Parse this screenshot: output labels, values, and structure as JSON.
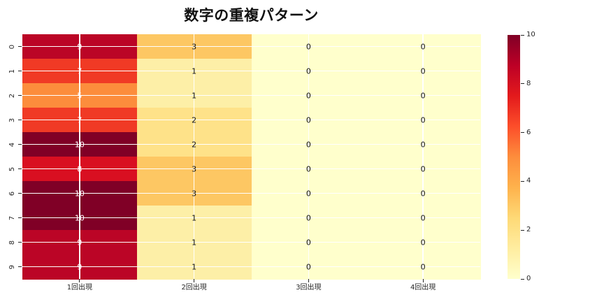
{
  "title": "数字の重複パターン",
  "colors": {
    "background": "#ffffff",
    "grid": "#ffffff",
    "tick": "#262626",
    "annotation_light": "#ffffff",
    "annotation_dark": "#111111",
    "title_text": "#111111"
  },
  "chart_data": {
    "type": "heatmap",
    "title": "数字の重複パターン",
    "row_labels": [
      "0",
      "1",
      "2",
      "3",
      "4",
      "5",
      "6",
      "7",
      "8",
      "9"
    ],
    "column_labels": [
      "1回出現",
      "2回出現",
      "3回出現",
      "4回出現"
    ],
    "values": [
      [
        9,
        3,
        0,
        0
      ],
      [
        7,
        1,
        0,
        0
      ],
      [
        5,
        1,
        0,
        0
      ],
      [
        7,
        2,
        0,
        0
      ],
      [
        10,
        2,
        0,
        0
      ],
      [
        8,
        3,
        0,
        0
      ],
      [
        10,
        3,
        0,
        0
      ],
      [
        10,
        1,
        0,
        0
      ],
      [
        9,
        1,
        0,
        0
      ],
      [
        9,
        1,
        0,
        0
      ]
    ],
    "vmin": 0,
    "vmax": 10,
    "colormap_name": "YlOrRd",
    "annotation_light_threshold": 5,
    "grid": true,
    "legend_position": "right-colorbar",
    "colorbar_ticks": [
      10,
      8,
      6,
      4,
      2,
      0
    ],
    "value_palette": {
      "0": "#ffffcc",
      "1": "#fdefa7",
      "2": "#fee289",
      "3": "#fdc763",
      "5": "#fc8d3c",
      "7": "#f03a25",
      "8": "#d90f21",
      "9": "#bb0526",
      "10": "#800026"
    },
    "colorbar_gradient": [
      "#ffffcc",
      "#ffeda0",
      "#fed976",
      "#feb24c",
      "#fd8d3c",
      "#fc4e2a",
      "#e31a1c",
      "#bd0026",
      "#800026"
    ]
  }
}
